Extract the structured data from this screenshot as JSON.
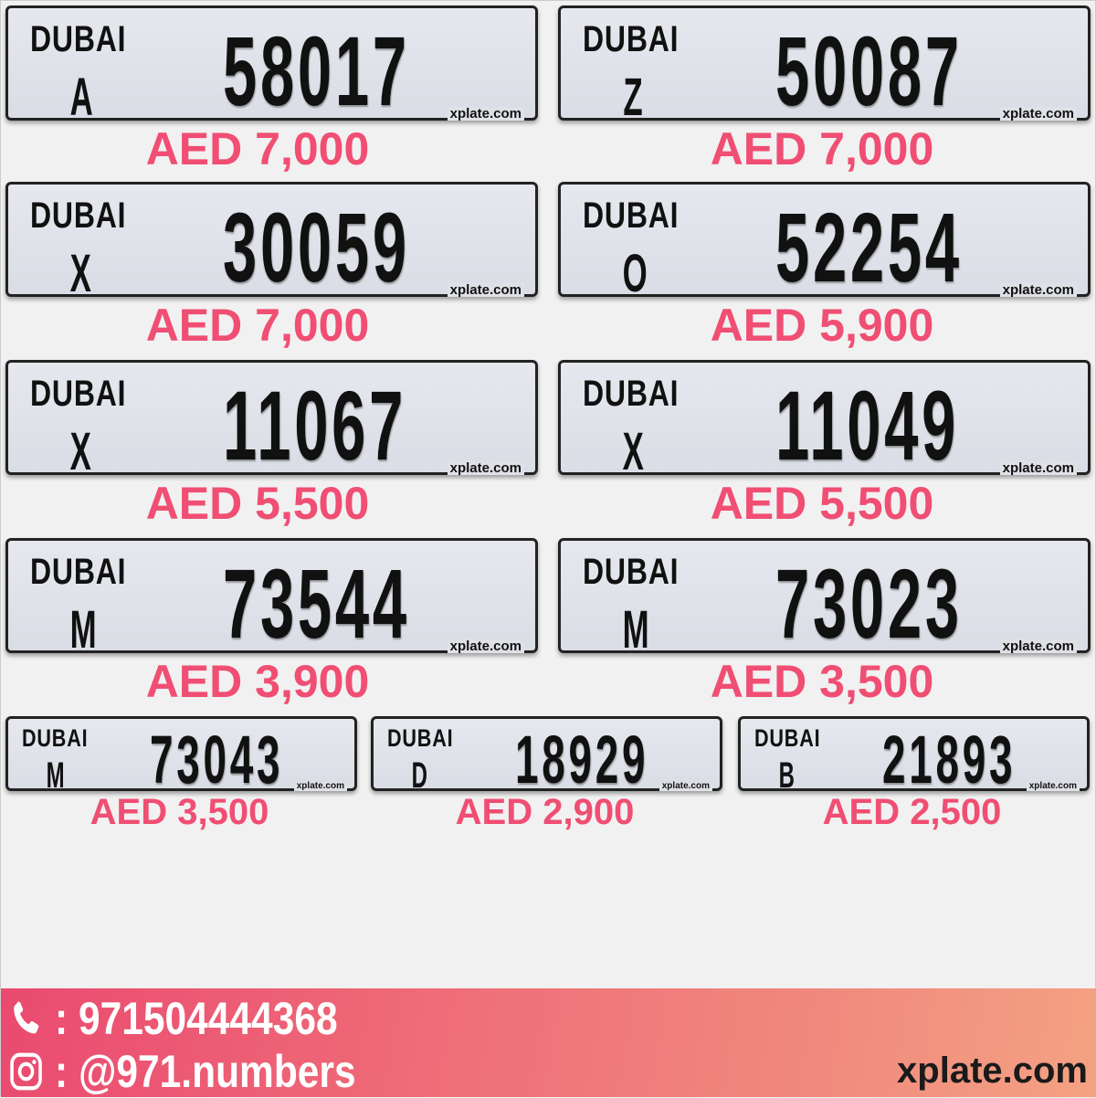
{
  "plates": [
    {
      "emirate": "DUBAI",
      "code": "A",
      "number": "58017",
      "watermark": "xplate.com",
      "price": "AED 7,000"
    },
    {
      "emirate": "DUBAI",
      "code": "Z",
      "number": "50087",
      "watermark": "xplate.com",
      "price": "AED 7,000"
    },
    {
      "emirate": "DUBAI",
      "code": "X",
      "number": "30059",
      "watermark": "xplate.com",
      "price": "AED 7,000"
    },
    {
      "emirate": "DUBAI",
      "code": "O",
      "number": "52254",
      "watermark": "xplate.com",
      "price": "AED 5,900"
    },
    {
      "emirate": "DUBAI",
      "code": "X",
      "number": "11067",
      "watermark": "xplate.com",
      "price": "AED 5,500"
    },
    {
      "emirate": "DUBAI",
      "code": "X",
      "number": "11049",
      "watermark": "xplate.com",
      "price": "AED 5,500"
    },
    {
      "emirate": "DUBAI",
      "code": "M",
      "number": "73544",
      "watermark": "xplate.com",
      "price": "AED 3,900"
    },
    {
      "emirate": "DUBAI",
      "code": "M",
      "number": "73023",
      "watermark": "xplate.com",
      "price": "AED 3,500"
    },
    {
      "emirate": "DUBAI",
      "code": "M",
      "number": "73043",
      "watermark": "xplate.com",
      "price": "AED 3,500"
    },
    {
      "emirate": "DUBAI",
      "code": "D",
      "number": "18929",
      "watermark": "xplate.com",
      "price": "AED 2,900"
    },
    {
      "emirate": "DUBAI",
      "code": "B",
      "number": "21893",
      "watermark": "xplate.com",
      "price": "AED 2,500"
    }
  ],
  "footer": {
    "phone": ": 971504444368",
    "instagram": ": @971.numbers",
    "site": "xplate.com",
    "phone_icon": "phone-icon",
    "instagram_icon": "instagram-icon"
  },
  "colors": {
    "price": "#f04e73",
    "footer_start": "#ea4a70",
    "footer_end": "#f4a283"
  }
}
